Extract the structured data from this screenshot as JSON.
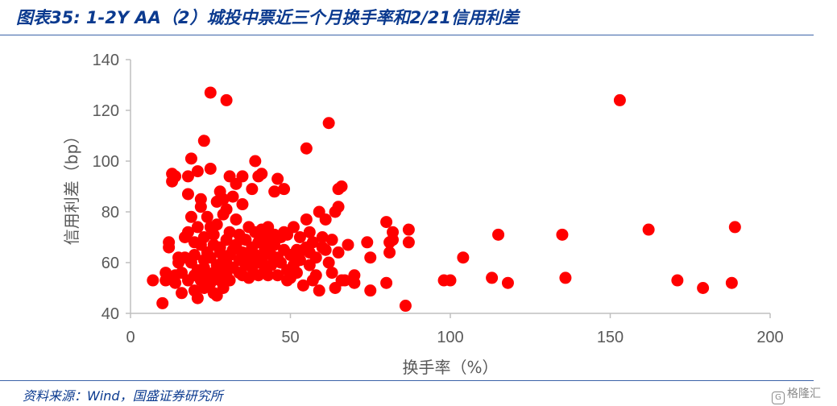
{
  "header": {
    "title": "图表35: 1-2Y AA（2）城投中票近三个月换手率和2/21信用利差"
  },
  "footer": {
    "source": "资料来源：Wind，国盛证券研究所",
    "watermark": "格隆汇"
  },
  "colors": {
    "point": "#ff0000",
    "title": "#0b3a8f",
    "axis": "#bfbfbf",
    "text": "#595959"
  },
  "chart_data": {
    "type": "scatter",
    "title": "",
    "xlabel": "换手率（%）",
    "ylabel": "信用利差（bp）",
    "xlim": [
      0,
      200
    ],
    "ylim": [
      40,
      140
    ],
    "x_ticks": [
      "0",
      "50",
      "100",
      "150",
      "200"
    ],
    "y_ticks": [
      "40",
      "60",
      "80",
      "100",
      "120",
      "140"
    ],
    "grid": false,
    "legend": "none",
    "series": [
      {
        "points": [
          [
            7,
            53
          ],
          [
            10,
            44
          ],
          [
            11,
            56
          ],
          [
            11,
            53
          ],
          [
            12,
            66
          ],
          [
            12,
            68
          ],
          [
            13,
            92
          ],
          [
            13,
            95
          ],
          [
            14,
            94
          ],
          [
            14,
            55
          ],
          [
            14,
            52
          ],
          [
            15,
            60
          ],
          [
            15,
            62
          ],
          [
            16,
            48
          ],
          [
            16,
            56
          ],
          [
            17,
            62
          ],
          [
            17,
            70
          ],
          [
            18,
            87
          ],
          [
            18,
            94
          ],
          [
            18,
            53
          ],
          [
            18,
            72
          ],
          [
            19,
            101
          ],
          [
            19,
            78
          ],
          [
            19,
            60
          ],
          [
            20,
            49
          ],
          [
            20,
            63
          ],
          [
            20,
            68
          ],
          [
            20,
            55
          ],
          [
            21,
            96
          ],
          [
            21,
            46
          ],
          [
            21,
            57
          ],
          [
            21,
            74
          ],
          [
            22,
            67
          ],
          [
            22,
            53
          ],
          [
            22,
            82
          ],
          [
            22,
            85
          ],
          [
            23,
            108
          ],
          [
            23,
            61
          ],
          [
            23,
            50
          ],
          [
            23,
            58
          ],
          [
            23,
            70
          ],
          [
            24,
            55
          ],
          [
            24,
            64
          ],
          [
            24,
            78
          ],
          [
            25,
            127
          ],
          [
            25,
            97
          ],
          [
            25,
            62
          ],
          [
            25,
            52
          ],
          [
            25,
            74
          ],
          [
            26,
            48
          ],
          [
            26,
            67
          ],
          [
            26,
            71
          ],
          [
            26,
            56
          ],
          [
            27,
            47
          ],
          [
            27,
            59
          ],
          [
            27,
            75
          ],
          [
            27,
            84
          ],
          [
            28,
            88
          ],
          [
            28,
            64
          ],
          [
            28,
            53
          ],
          [
            28,
            66
          ],
          [
            29,
            79
          ],
          [
            29,
            57
          ],
          [
            29,
            61
          ],
          [
            29,
            85
          ],
          [
            29,
            50
          ],
          [
            30,
            124
          ],
          [
            30,
            60
          ],
          [
            30,
            69
          ],
          [
            30,
            55
          ],
          [
            30,
            81
          ],
          [
            31,
            94
          ],
          [
            31,
            72
          ],
          [
            31,
            63
          ],
          [
            31,
            53
          ],
          [
            32,
            65
          ],
          [
            32,
            86
          ],
          [
            32,
            58
          ],
          [
            33,
            91
          ],
          [
            33,
            67
          ],
          [
            33,
            77
          ],
          [
            34,
            56
          ],
          [
            34,
            61
          ],
          [
            34,
            71
          ],
          [
            35,
            94
          ],
          [
            35,
            83
          ],
          [
            35,
            55
          ],
          [
            35,
            64
          ],
          [
            36,
            59
          ],
          [
            36,
            69
          ],
          [
            37,
            62
          ],
          [
            37,
            74
          ],
          [
            37,
            54
          ],
          [
            38,
            89
          ],
          [
            38,
            66
          ],
          [
            38,
            58
          ],
          [
            39,
            100
          ],
          [
            39,
            72
          ],
          [
            39,
            63
          ],
          [
            40,
            94
          ],
          [
            40,
            55
          ],
          [
            40,
            68
          ],
          [
            40,
            60
          ],
          [
            41,
            95
          ],
          [
            41,
            73
          ],
          [
            41,
            61
          ],
          [
            42,
            65
          ],
          [
            42,
            71
          ],
          [
            42,
            57
          ],
          [
            43,
            55
          ],
          [
            43,
            69
          ],
          [
            43,
            74
          ],
          [
            44,
            63
          ],
          [
            44,
            59
          ],
          [
            45,
            71
          ],
          [
            45,
            67
          ],
          [
            45,
            88
          ],
          [
            46,
            93
          ],
          [
            46,
            62
          ],
          [
            46,
            55
          ],
          [
            47,
            70
          ],
          [
            47,
            60
          ],
          [
            48,
            89
          ],
          [
            48,
            65
          ],
          [
            48,
            72
          ],
          [
            49,
            53
          ],
          [
            49,
            57
          ],
          [
            49,
            71
          ],
          [
            50,
            54
          ],
          [
            50,
            63
          ],
          [
            51,
            74
          ],
          [
            51,
            59
          ],
          [
            52,
            65
          ],
          [
            52,
            56
          ],
          [
            53,
            70
          ],
          [
            53,
            61
          ],
          [
            54,
            51
          ],
          [
            54,
            65
          ],
          [
            55,
            66
          ],
          [
            55,
            105
          ],
          [
            55,
            77
          ],
          [
            56,
            72
          ],
          [
            56,
            64
          ],
          [
            56,
            59
          ],
          [
            57,
            53
          ],
          [
            57,
            68
          ],
          [
            58,
            55
          ],
          [
            58,
            62
          ],
          [
            59,
            80
          ],
          [
            59,
            49
          ],
          [
            60,
            70
          ],
          [
            60,
            66
          ],
          [
            61,
            77
          ],
          [
            61,
            65
          ],
          [
            62,
            115
          ],
          [
            62,
            60
          ],
          [
            63,
            56
          ],
          [
            63,
            69
          ],
          [
            64,
            80
          ],
          [
            64,
            50
          ],
          [
            65,
            64
          ],
          [
            65,
            82
          ],
          [
            65,
            89
          ],
          [
            66,
            90
          ],
          [
            66,
            53
          ],
          [
            67,
            53
          ],
          [
            68,
            67
          ],
          [
            70,
            52
          ],
          [
            70,
            55
          ],
          [
            74,
            68
          ],
          [
            75,
            49
          ],
          [
            75,
            62
          ],
          [
            80,
            76
          ],
          [
            80,
            52
          ],
          [
            81,
            64
          ],
          [
            81,
            68
          ],
          [
            82,
            69
          ],
          [
            82,
            72
          ],
          [
            86,
            43
          ],
          [
            87,
            68
          ],
          [
            87,
            73
          ],
          [
            98,
            53
          ],
          [
            100,
            53
          ],
          [
            104,
            62
          ],
          [
            113,
            54
          ],
          [
            115,
            71
          ],
          [
            118,
            52
          ],
          [
            135,
            71
          ],
          [
            136,
            54
          ],
          [
            153,
            124
          ],
          [
            162,
            73
          ],
          [
            171,
            53
          ],
          [
            179,
            50
          ],
          [
            188,
            52
          ],
          [
            189,
            74
          ]
        ]
      }
    ]
  }
}
